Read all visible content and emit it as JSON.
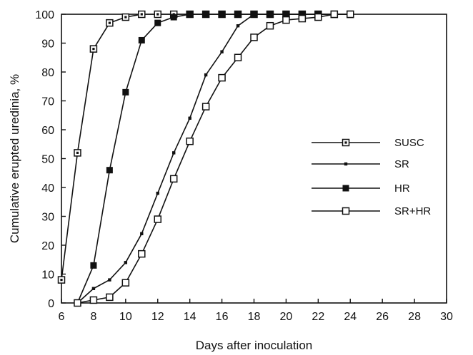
{
  "chart_data": {
    "type": "line",
    "title": "",
    "xlabel": "Days after inoculation",
    "ylabel": "Cumulative erupted uredinia, %",
    "xlim": [
      6,
      30
    ],
    "ylim": [
      0,
      100
    ],
    "xticks": [
      6,
      8,
      10,
      12,
      14,
      16,
      18,
      20,
      22,
      24,
      26,
      28,
      30
    ],
    "yticks": [
      0,
      10,
      20,
      30,
      40,
      50,
      60,
      70,
      80,
      90,
      100
    ],
    "xtick_labels": [
      "6",
      "8",
      "10",
      "12",
      "14",
      "16",
      "18",
      "20",
      "22",
      "24",
      "26",
      "28",
      "30"
    ],
    "ytick_labels": [
      "0",
      "10",
      "20",
      "30",
      "40",
      "50",
      "60",
      "70",
      "80",
      "90",
      "100"
    ],
    "grid": false,
    "legend_position": "right-middle",
    "series": [
      {
        "name": "SUSC",
        "marker": "dotted-square",
        "x": [
          6,
          7,
          8,
          9,
          10,
          11,
          12,
          13,
          14,
          15,
          16,
          17,
          18,
          19,
          20,
          21,
          22,
          23,
          24
        ],
        "y": [
          8,
          52,
          88,
          97,
          99,
          100,
          100,
          100,
          100,
          100,
          100,
          100,
          100,
          100,
          100,
          100,
          100,
          100,
          100
        ]
      },
      {
        "name": "SR",
        "marker": "small-filled-square",
        "x": [
          7,
          8,
          9,
          10,
          11,
          12,
          13,
          14,
          15,
          16,
          17,
          18,
          19,
          20,
          21,
          22,
          23,
          24
        ],
        "y": [
          0,
          5,
          8,
          14,
          24,
          38,
          52,
          64,
          79,
          87,
          96,
          100,
          100,
          100,
          100,
          100,
          100,
          100
        ]
      },
      {
        "name": "HR",
        "marker": "filled-square",
        "x": [
          7,
          8,
          9,
          10,
          11,
          12,
          13,
          14,
          15,
          16,
          17,
          18,
          19,
          20,
          21,
          22,
          23,
          24
        ],
        "y": [
          0,
          13,
          46,
          73,
          91,
          97,
          99,
          100,
          100,
          100,
          100,
          100,
          100,
          100,
          100,
          100,
          100,
          100
        ]
      },
      {
        "name": "SR+HR",
        "marker": "open-square",
        "x": [
          7,
          8,
          9,
          10,
          11,
          12,
          13,
          14,
          15,
          16,
          17,
          18,
          19,
          20,
          21,
          22,
          23,
          24
        ],
        "y": [
          0,
          1,
          2,
          7,
          17,
          29,
          43,
          56,
          68,
          78,
          85,
          92,
          96,
          98,
          98.5,
          99,
          100,
          100
        ]
      }
    ]
  }
}
